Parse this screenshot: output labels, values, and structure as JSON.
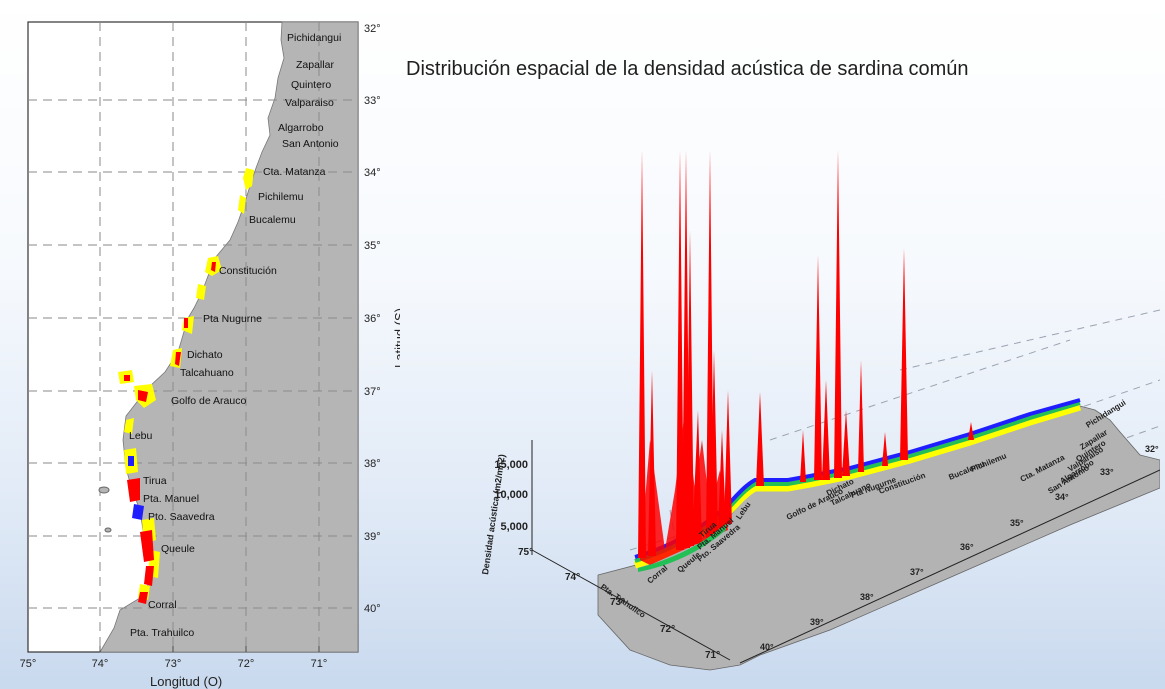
{
  "title": "Distribución espacial de la densidad acústica de sardina común",
  "left_map": {
    "x_axis_label": "Longitud (O)",
    "y_axis_label": "Latitud (S)",
    "x_ticks": [
      "75°",
      "74°",
      "73°",
      "72°",
      "71°"
    ],
    "y_ticks": [
      "32°",
      "33°",
      "34°",
      "35°",
      "36°",
      "37°",
      "38°",
      "39°",
      "40°"
    ],
    "places": [
      "Pichidangui",
      "Zapallar",
      "Quintero",
      "Valparaiso",
      "Algarrobo",
      "San Antonio",
      "Cta. Matanza",
      "Pichilemu",
      "Bucalemu",
      "Constitución",
      "Pta Nugurne",
      "Dichato",
      "Talcahuano",
      "Golfo de Arauco",
      "Lebu",
      "Tirua",
      "Pta. Manuel",
      "Pto. Saavedra",
      "Queule",
      "Corral",
      "Pta. Trahuilco"
    ]
  },
  "right_plot": {
    "z_axis_label": "Densidad acústica (m2/mn2)",
    "z_ticks": [
      "15,000",
      "10,000",
      "5,000"
    ],
    "lon_ticks": [
      "75°",
      "74°",
      "73°",
      "72°",
      "71°"
    ],
    "lat_ticks": [
      "32°",
      "33°",
      "34°",
      "35°",
      "36°",
      "37°",
      "38°",
      "39°",
      "40°"
    ],
    "places": [
      "Pichidangui",
      "Zapallar",
      "Quintero",
      "Valparaiso",
      "Algarrobo",
      "San Antonio",
      "Cta. Matanza",
      "Pichilemu",
      "Bucalemu",
      "Constitución",
      "Pta Nugurne",
      "Dichato",
      "Talcahuano",
      "Golfo de Arauco",
      "Lebu",
      "Tirua",
      "Pta. Manuel",
      "Pto. Saavedra",
      "Queule",
      "Corral",
      "Pta. Trahuilco"
    ]
  },
  "colors": {
    "land": "#b5b5b5",
    "high_density": "#ff0000",
    "mid_density": "#1e1eff",
    "low_density": "#ffff00",
    "green_band": "#22c055"
  }
}
